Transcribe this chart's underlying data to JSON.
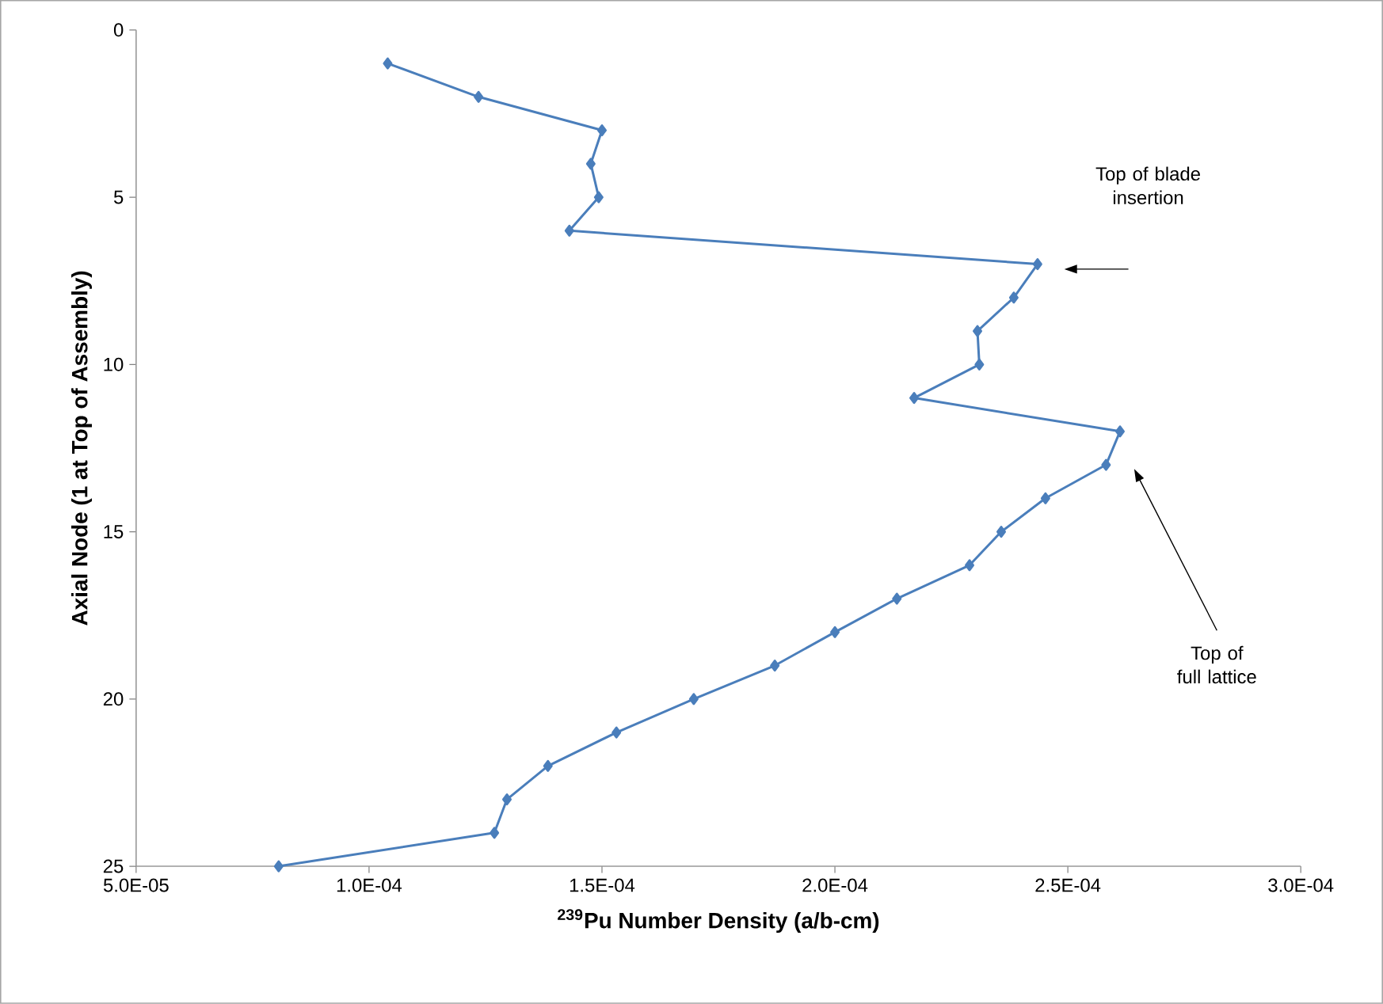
{
  "chart_data": {
    "type": "line",
    "xlabel": "$^{239}$Pu Number Density (a/b-cm)",
    "ylabel": "Axial Node (1 at Top of Assembly)",
    "x": [
      0.000104,
      0.0001235,
      0.00015,
      0.0001476,
      0.0001493,
      0.000143,
      0.0002435,
      0.0002384,
      0.0002306,
      0.000231,
      0.000217,
      0.0002612,
      0.0002582,
      0.0002452,
      0.0002357,
      0.0002289,
      0.0002133,
      0.0002,
      0.0001871,
      0.0001697,
      0.0001531,
      0.0001384,
      0.0001296,
      0.0001269,
      8.06e-05
    ],
    "series": [
      {
        "color": "#4a7ebb",
        "values": [
          1,
          2,
          3,
          4,
          5,
          6,
          7,
          8,
          9,
          10,
          11,
          12,
          13,
          14,
          15,
          16,
          17,
          18,
          19,
          20,
          21,
          22,
          23,
          24,
          25
        ]
      }
    ],
    "xlim": [
      5e-05,
      0.0003
    ],
    "xticks": [
      {
        "value": 5e-05,
        "label": "5.0E-05"
      },
      {
        "value": 0.0001,
        "label": "1.0E-04"
      },
      {
        "value": 0.00015,
        "label": "1.5E-04"
      },
      {
        "value": 0.0002,
        "label": "2.0E-04"
      },
      {
        "value": 0.00025,
        "label": "2.5E-04"
      },
      {
        "value": 0.0003,
        "label": "3.0E-04"
      }
    ],
    "ylim": [
      25,
      0
    ],
    "yticks": [
      0,
      5,
      10,
      15,
      20,
      25
    ],
    "marker": "diamond",
    "grid": false,
    "annotations": [
      "Top of blade insertion",
      "Top of full lattice"
    ]
  }
}
